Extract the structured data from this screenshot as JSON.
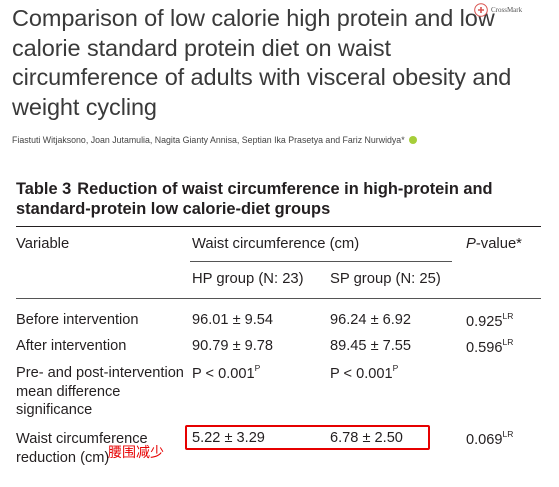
{
  "paper": {
    "title": "Comparison of low calorie high protein and low calorie standard protein diet on waist circumference of adults with visceral obesity and weight cycling",
    "authors": "Fiastuti Witjaksono, Joan Jutamulia, Nagita Gianty Annisa, Septian Ika Prasetya and Fariz Nurwidya*",
    "crossmark_label": "CrossMark"
  },
  "table": {
    "label": "Table 3",
    "caption": "Reduction of waist circumference in high-protein and standard-protein low calorie-diet groups",
    "headers": {
      "variable": "Variable",
      "waist": "Waist circumference (cm)",
      "p_value_italic": "P",
      "p_value_rest": "-value*",
      "hp_group": "HP group (N: 23)",
      "sp_group": "SP group (N: 25)"
    },
    "rows": [
      {
        "variable": "Before intervention",
        "hp": "96.01 ± 9.54",
        "sp": "96.24 ± 6.92",
        "p": "0.925",
        "p_sup": "LR"
      },
      {
        "variable": "After intervention",
        "hp": "90.79 ± 9.78",
        "sp": "89.45 ± 7.55",
        "p": "0.596",
        "p_sup": "LR"
      },
      {
        "variable": "Pre- and post-intervention mean difference significance",
        "hp": "P < 0.001",
        "hp_sup": "P",
        "sp": "P < 0.001",
        "sp_sup": "P"
      },
      {
        "variable": "Waist circumference reduction (cm)",
        "hp": "5.22 ± 3.29",
        "sp": "6.78 ± 2.50",
        "p": "0.069",
        "p_sup": "LR"
      }
    ]
  },
  "annotation": {
    "text": "腰围减少",
    "color": "#e60000"
  }
}
